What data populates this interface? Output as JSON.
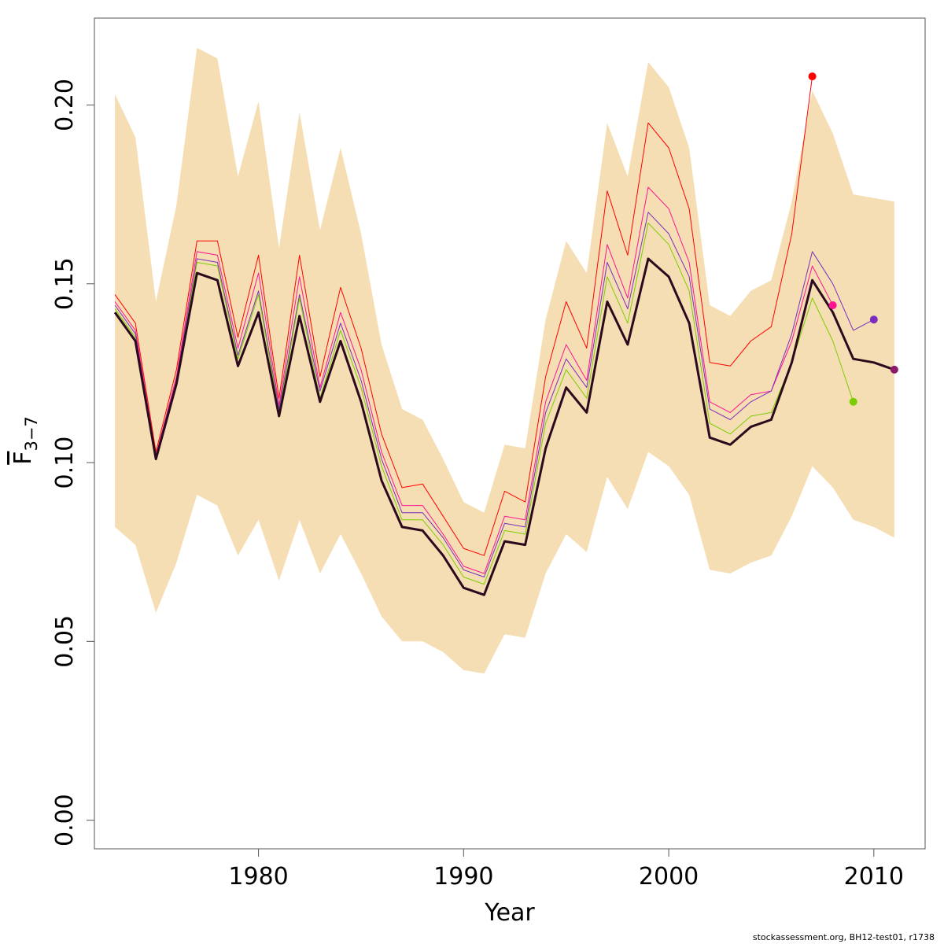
{
  "chart_data": {
    "type": "line",
    "xlabel": "Year",
    "ylabel_main": "F",
    "ylabel_sub": "3−7",
    "xlim": [
      1972,
      2012.5
    ],
    "ylim": [
      -0.008,
      0.2243
    ],
    "x_ticks": [
      1980,
      1990,
      2000,
      2010
    ],
    "y_ticks": [
      0.0,
      0.05,
      0.1,
      0.15,
      0.2
    ],
    "y_tick_labels": [
      "0.00",
      "0.05",
      "0.10",
      "0.15",
      "0.20"
    ],
    "band": {
      "color": "#f5deb3",
      "x": [
        1973,
        1974,
        1975,
        1976,
        1977,
        1978,
        1979,
        1980,
        1981,
        1982,
        1983,
        1984,
        1985,
        1986,
        1987,
        1988,
        1989,
        1990,
        1991,
        1992,
        1993,
        1994,
        1995,
        1996,
        1997,
        1998,
        1999,
        2000,
        2001,
        2002,
        2003,
        2004,
        2005,
        2006,
        2007,
        2008,
        2009,
        2010,
        2011
      ],
      "upper": [
        0.203,
        0.191,
        0.145,
        0.172,
        0.216,
        0.213,
        0.18,
        0.201,
        0.16,
        0.198,
        0.165,
        0.188,
        0.164,
        0.133,
        0.115,
        0.112,
        0.101,
        0.089,
        0.086,
        0.105,
        0.104,
        0.14,
        0.162,
        0.153,
        0.195,
        0.18,
        0.212,
        0.205,
        0.188,
        0.144,
        0.141,
        0.148,
        0.151,
        0.173,
        0.204,
        0.192,
        0.175,
        0.174,
        0.173
      ],
      "lower": [
        0.082,
        0.077,
        0.058,
        0.072,
        0.091,
        0.088,
        0.074,
        0.084,
        0.067,
        0.084,
        0.069,
        0.08,
        0.069,
        0.057,
        0.05,
        0.05,
        0.047,
        0.042,
        0.041,
        0.052,
        0.051,
        0.069,
        0.08,
        0.075,
        0.096,
        0.087,
        0.103,
        0.099,
        0.091,
        0.07,
        0.069,
        0.072,
        0.074,
        0.085,
        0.099,
        0.093,
        0.084,
        0.082,
        0.079
      ]
    },
    "series": [
      {
        "color": "#ff0000",
        "width": 1,
        "end_dot": true,
        "x": [
          1973,
          1974,
          1975,
          1976,
          1977,
          1978,
          1979,
          1980,
          1981,
          1982,
          1983,
          1984,
          1985,
          1986,
          1987,
          1988,
          1989,
          1990,
          1991,
          1992,
          1993,
          1994,
          1995,
          1996,
          1997,
          1998,
          1999,
          2000,
          2001,
          2002,
          2003,
          2004,
          2005,
          2006,
          2007
        ],
        "values": [
          0.147,
          0.139,
          0.103,
          0.126,
          0.162,
          0.162,
          0.135,
          0.158,
          0.118,
          0.158,
          0.124,
          0.149,
          0.132,
          0.108,
          0.093,
          0.094,
          0.085,
          0.076,
          0.074,
          0.092,
          0.089,
          0.124,
          0.145,
          0.132,
          0.176,
          0.158,
          0.195,
          0.188,
          0.171,
          0.128,
          0.127,
          0.134,
          0.138,
          0.164,
          0.208
        ]
      },
      {
        "color": "#ff1493",
        "width": 1,
        "end_dot": true,
        "x": [
          1973,
          1974,
          1975,
          1976,
          1977,
          1978,
          1979,
          1980,
          1981,
          1982,
          1983,
          1984,
          1985,
          1986,
          1987,
          1988,
          1989,
          1990,
          1991,
          1992,
          1993,
          1994,
          1995,
          1996,
          1997,
          1998,
          1999,
          2000,
          2001,
          2002,
          2003,
          2004,
          2005,
          2006,
          2007,
          2008
        ],
        "values": [
          0.145,
          0.137,
          0.102,
          0.124,
          0.159,
          0.158,
          0.132,
          0.153,
          0.116,
          0.152,
          0.121,
          0.142,
          0.126,
          0.103,
          0.088,
          0.088,
          0.08,
          0.071,
          0.069,
          0.085,
          0.084,
          0.117,
          0.133,
          0.123,
          0.161,
          0.146,
          0.177,
          0.171,
          0.156,
          0.117,
          0.114,
          0.119,
          0.12,
          0.134,
          0.155,
          0.144
        ]
      },
      {
        "color": "#7b2fbe",
        "width": 1,
        "end_dot": true,
        "x": [
          1973,
          1974,
          1975,
          1976,
          1977,
          1978,
          1979,
          1980,
          1981,
          1982,
          1983,
          1984,
          1985,
          1986,
          1987,
          1988,
          1989,
          1990,
          1991,
          1992,
          1993,
          1994,
          1995,
          1996,
          1997,
          1998,
          1999,
          2000,
          2001,
          2002,
          2003,
          2004,
          2005,
          2006,
          2007,
          2008,
          2009,
          2010
        ],
        "values": [
          0.144,
          0.136,
          0.102,
          0.123,
          0.157,
          0.156,
          0.13,
          0.148,
          0.115,
          0.147,
          0.12,
          0.139,
          0.123,
          0.101,
          0.086,
          0.086,
          0.079,
          0.07,
          0.068,
          0.083,
          0.082,
          0.114,
          0.129,
          0.121,
          0.156,
          0.143,
          0.17,
          0.164,
          0.152,
          0.115,
          0.112,
          0.117,
          0.12,
          0.136,
          0.159,
          0.15,
          0.137,
          0.14
        ]
      },
      {
        "color": "#7ccd00",
        "width": 1,
        "end_dot": true,
        "x": [
          1973,
          1974,
          1975,
          1976,
          1977,
          1978,
          1979,
          1980,
          1981,
          1982,
          1983,
          1984,
          1985,
          1986,
          1987,
          1988,
          1989,
          1990,
          1991,
          1992,
          1993,
          1994,
          1995,
          1996,
          1997,
          1998,
          1999,
          2000,
          2001,
          2002,
          2003,
          2004,
          2005,
          2006,
          2007,
          2008,
          2009
        ],
        "values": [
          0.143,
          0.135,
          0.101,
          0.122,
          0.156,
          0.155,
          0.129,
          0.147,
          0.114,
          0.146,
          0.118,
          0.137,
          0.121,
          0.099,
          0.084,
          0.084,
          0.077,
          0.068,
          0.066,
          0.081,
          0.08,
          0.111,
          0.126,
          0.118,
          0.152,
          0.139,
          0.167,
          0.161,
          0.148,
          0.111,
          0.108,
          0.113,
          0.114,
          0.128,
          0.146,
          0.134,
          0.117
        ]
      },
      {
        "color": "#2b0a1e",
        "width": 3,
        "end_dot": true,
        "dot_color": "#8b1a6b",
        "x": [
          1973,
          1974,
          1975,
          1976,
          1977,
          1978,
          1979,
          1980,
          1981,
          1982,
          1983,
          1984,
          1985,
          1986,
          1987,
          1988,
          1989,
          1990,
          1991,
          1992,
          1993,
          1994,
          1995,
          1996,
          1997,
          1998,
          1999,
          2000,
          2001,
          2002,
          2003,
          2004,
          2005,
          2006,
          2007,
          2008,
          2009,
          2010,
          2011
        ],
        "values": [
          0.142,
          0.134,
          0.101,
          0.122,
          0.153,
          0.151,
          0.127,
          0.142,
          0.113,
          0.141,
          0.117,
          0.134,
          0.117,
          0.095,
          0.082,
          0.081,
          0.074,
          0.065,
          0.063,
          0.078,
          0.077,
          0.104,
          0.121,
          0.114,
          0.145,
          0.133,
          0.157,
          0.152,
          0.139,
          0.107,
          0.105,
          0.11,
          0.112,
          0.128,
          0.151,
          0.142,
          0.129,
          0.128,
          0.126
        ]
      }
    ]
  },
  "footer": "stockassessment.org, BH12-test01, r1738"
}
